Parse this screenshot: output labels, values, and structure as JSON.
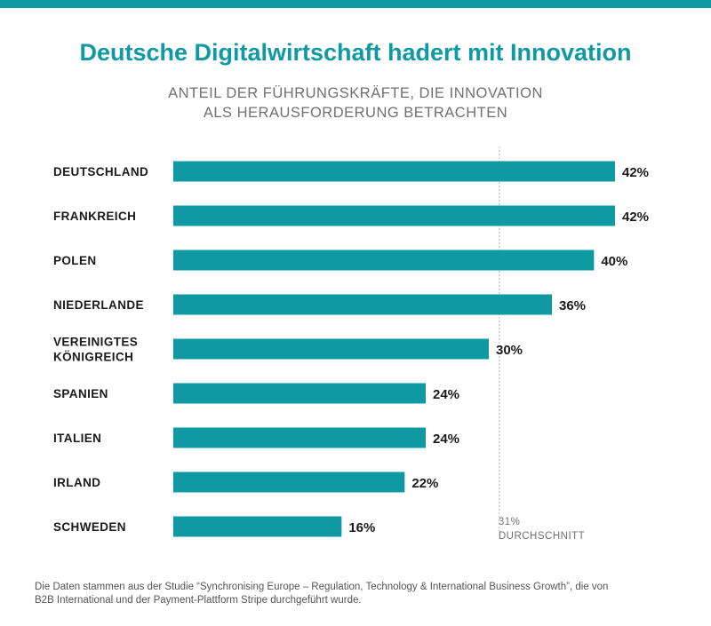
{
  "chart_data": {
    "type": "bar",
    "orientation": "horizontal",
    "title": "Deutsche Digitalwirtschaft hadert mit Innovation",
    "subtitle_lines": [
      "ANTEIL DER FÜHRUNGSKRÄFTE, DIE INNOVATION",
      "ALS HERAUSFORDERUNG BETRACHTEN"
    ],
    "categories": [
      [
        "DEUTSCHLAND"
      ],
      [
        "FRANKREICH"
      ],
      [
        "POLEN"
      ],
      [
        "NIEDERLANDE"
      ],
      [
        "VEREINIGTES",
        "KÖNIGREICH"
      ],
      [
        "SPANIEN"
      ],
      [
        "ITALIEN"
      ],
      [
        "IRLAND"
      ],
      [
        "SCHWEDEN"
      ]
    ],
    "values": [
      42,
      42,
      40,
      36,
      30,
      24,
      24,
      22,
      16
    ],
    "value_labels": [
      "42%",
      "42%",
      "40%",
      "36%",
      "30%",
      "24%",
      "24%",
      "22%",
      "16%"
    ],
    "xlim": [
      0,
      42
    ],
    "reference_line": {
      "value": 31,
      "label_lines": [
        "31%",
        "DURCHSCHNITT"
      ]
    },
    "xlabel": "",
    "ylabel": "",
    "grid": false,
    "legend": "none"
  },
  "footnote_lines": [
    "Die Daten stammen aus der Studie “Synchronising Europe – Regulation, Technology & International Business Growth”, die von",
    "B2B International und der Payment-Plattform Stripe durchgeführt wurde."
  ],
  "colors": {
    "accent": "#0e99a3",
    "bar": "#0e99a3",
    "label": "#1a1a1a",
    "muted": "#707070",
    "refline": "#bbbbbb"
  }
}
